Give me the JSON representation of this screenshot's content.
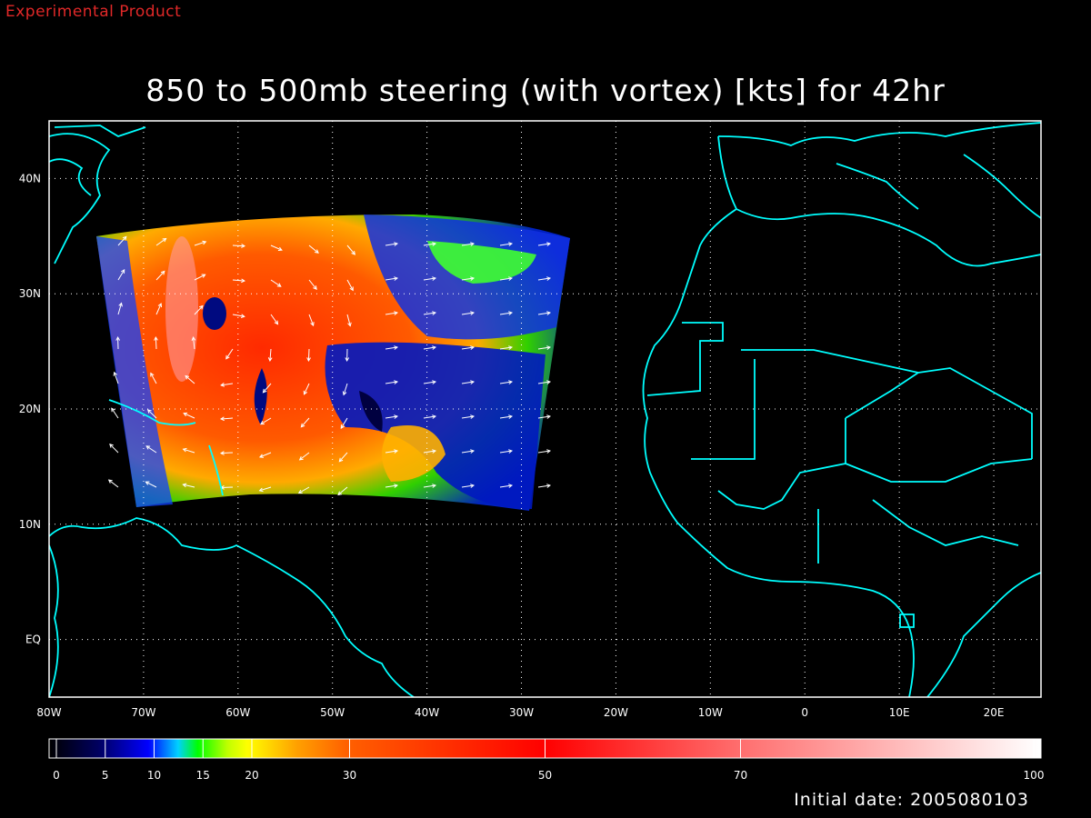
{
  "header": {
    "experimental_label": "Experimental Product",
    "title": "850 to 500mb steering (with vortex) [kts] for 42hr"
  },
  "footer": {
    "initial_date": "Initial date: 2005080103"
  },
  "map": {
    "lon_ticks": [
      "80W",
      "70W",
      "60W",
      "50W",
      "40W",
      "30W",
      "20W",
      "10W",
      "0",
      "10E",
      "20E"
    ],
    "lat_ticks": [
      "40N",
      "30N",
      "20N",
      "10N",
      "EQ"
    ],
    "grid": "dotted",
    "coastline_color": "#00ffff",
    "background_color": "#000000"
  },
  "colorbar": {
    "tick_labels": [
      "0",
      "5",
      "10",
      "15",
      "20",
      "30",
      "50",
      "70",
      "100"
    ],
    "tick_values": [
      0,
      5,
      10,
      15,
      20,
      30,
      50,
      70,
      100
    ],
    "colors": {
      "0": "#000000",
      "5": "#000060",
      "10": "#0000ff",
      "13": "#00d0ff",
      "15": "#00ff00",
      "18": "#c0ff00",
      "20": "#ffff00",
      "25": "#ffa000",
      "30": "#ff6000",
      "50": "#ff0000",
      "70": "#ff7070",
      "100": "#ffffff"
    }
  }
}
